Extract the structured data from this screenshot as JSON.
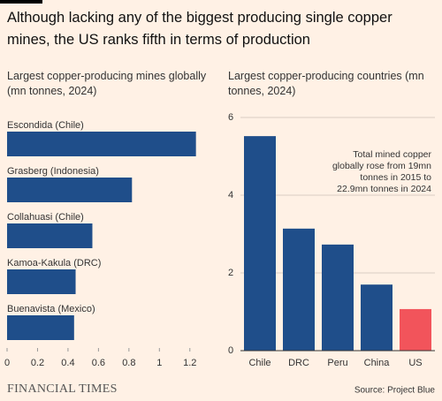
{
  "title": "Although lacking any of the biggest producing single copper mines, the US ranks fifth in terms of production",
  "brand": "FINANCIAL TIMES",
  "source": "Source: Project Blue",
  "chart_data": [
    {
      "type": "hbar",
      "title": "Largest copper-producing mines globally (mn tonnes, 2024)",
      "categories": [
        "Escondida (Chile)",
        "Grasberg (Indonesia)",
        "Collahuasi (Chile)",
        "Kamoa-Kakula (DRC)",
        "Buenavista (Mexico)"
      ],
      "values": [
        1.24,
        0.82,
        0.56,
        0.45,
        0.44
      ],
      "color": "#1f4e8a",
      "xlim": [
        0,
        1.3
      ],
      "xticks": [
        0,
        0.2,
        0.4,
        0.6,
        0.8,
        1,
        1.2
      ],
      "grid": false
    },
    {
      "type": "bar",
      "title": "Largest copper-producing countries (mn tonnes, 2024)",
      "categories": [
        "Chile",
        "DRC",
        "Peru",
        "China",
        "US"
      ],
      "values": [
        5.52,
        3.14,
        2.73,
        1.7,
        1.07
      ],
      "colors": [
        "#1f4e8a",
        "#1f4e8a",
        "#1f4e8a",
        "#1f4e8a",
        "#f2545b"
      ],
      "ylim": [
        0,
        6
      ],
      "yticks": [
        0,
        2,
        4,
        6
      ],
      "grid": true,
      "annotation": [
        "Total mined copper",
        "globally rose from 19mn",
        "tonnes in 2015 to",
        "22.9mn tonnes in 2024"
      ]
    }
  ]
}
